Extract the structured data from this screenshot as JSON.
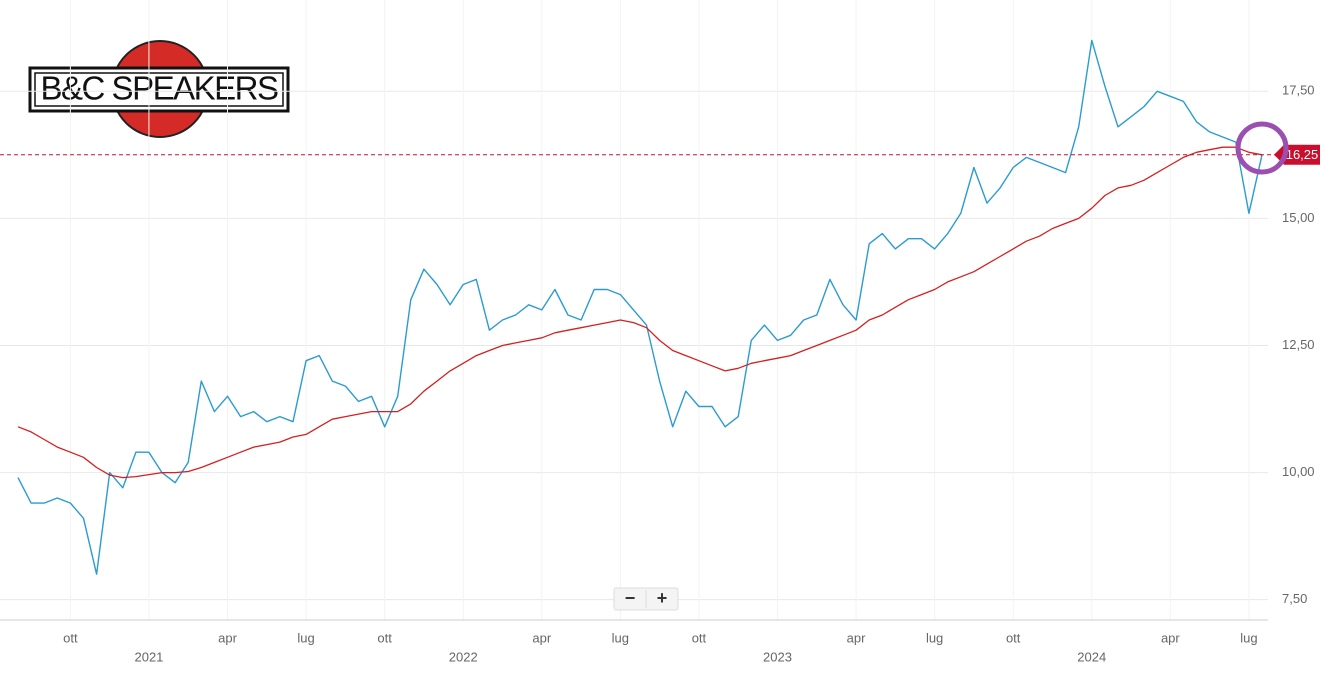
{
  "logo": {
    "text": "B&C SPEAKERS"
  },
  "controls": {
    "zoom_out": "−",
    "zoom_in": "+"
  },
  "chart_data": {
    "type": "line",
    "categories": [
      null,
      null,
      null,
      null,
      "ott",
      null,
      null,
      null,
      null,
      null,
      "2021",
      null,
      null,
      null,
      null,
      null,
      "apr",
      null,
      null,
      null,
      null,
      null,
      "lug",
      null,
      null,
      null,
      null,
      null,
      "ott",
      null,
      null,
      null,
      null,
      null,
      "2022",
      null,
      null,
      null,
      null,
      null,
      "apr",
      null,
      null,
      null,
      null,
      null,
      "lug",
      null,
      null,
      null,
      null,
      null,
      "ott",
      null,
      null,
      null,
      null,
      null,
      "2023",
      null,
      null,
      null,
      null,
      null,
      "apr",
      null,
      null,
      null,
      null,
      null,
      "lug",
      null,
      null,
      null,
      null,
      null,
      "ott",
      null,
      null,
      null,
      null,
      null,
      "2024",
      null,
      null,
      null,
      null,
      null,
      "apr",
      null,
      null,
      null,
      null,
      null,
      "lug",
      null
    ],
    "series": [
      {
        "color": "#2b9bd1",
        "values": [
          9.9,
          9.4,
          9.4,
          9.5,
          9.4,
          9.1,
          8.0,
          10.0,
          9.7,
          10.4,
          10.4,
          10.0,
          9.8,
          10.2,
          11.8,
          11.2,
          11.5,
          11.1,
          11.2,
          11.0,
          11.1,
          11.0,
          12.2,
          12.3,
          11.8,
          11.7,
          11.4,
          11.5,
          10.9,
          11.5,
          13.4,
          14.0,
          13.7,
          13.3,
          13.7,
          13.8,
          12.8,
          13.0,
          13.1,
          13.3,
          13.2,
          13.6,
          13.1,
          13.0,
          13.6,
          13.6,
          13.5,
          13.2,
          12.9,
          11.8,
          10.9,
          11.6,
          11.3,
          11.3,
          10.9,
          11.1,
          12.6,
          12.9,
          12.6,
          12.7,
          13.0,
          13.1,
          13.8,
          13.3,
          13.0,
          14.5,
          14.7,
          14.4,
          14.6,
          14.6,
          14.4,
          14.7,
          15.1,
          16.0,
          15.3,
          15.6,
          16.0,
          16.2,
          16.1,
          16.0,
          15.9,
          16.8,
          18.5,
          17.6,
          16.8,
          17.0,
          17.2,
          17.5,
          17.4,
          17.3,
          16.9,
          16.7,
          16.6,
          16.5,
          15.1,
          16.25
        ]
      },
      {
        "color": "#d42020",
        "values": [
          10.9,
          10.8,
          10.65,
          10.5,
          10.4,
          10.3,
          10.1,
          9.95,
          9.9,
          9.92,
          9.96,
          10.0,
          10.0,
          10.02,
          10.1,
          10.2,
          10.3,
          10.4,
          10.5,
          10.55,
          10.6,
          10.7,
          10.75,
          10.9,
          11.05,
          11.1,
          11.15,
          11.2,
          11.2,
          11.2,
          11.35,
          11.6,
          11.8,
          12.0,
          12.15,
          12.3,
          12.4,
          12.5,
          12.55,
          12.6,
          12.65,
          12.75,
          12.8,
          12.85,
          12.9,
          12.95,
          13.0,
          12.95,
          12.85,
          12.6,
          12.4,
          12.3,
          12.2,
          12.1,
          12.0,
          12.05,
          12.15,
          12.2,
          12.25,
          12.3,
          12.4,
          12.5,
          12.6,
          12.7,
          12.8,
          13.0,
          13.1,
          13.25,
          13.4,
          13.5,
          13.6,
          13.75,
          13.85,
          13.95,
          14.1,
          14.25,
          14.4,
          14.55,
          14.65,
          14.8,
          14.9,
          15.0,
          15.2,
          15.45,
          15.6,
          15.65,
          15.75,
          15.9,
          16.05,
          16.2,
          16.3,
          16.35,
          16.4,
          16.4,
          16.3,
          16.25
        ]
      }
    ],
    "ylim": [
      7.1,
      19
    ],
    "yticks": [
      {
        "value": 7.5,
        "label": "7,50"
      },
      {
        "value": 10,
        "label": "10,00"
      },
      {
        "value": 12.5,
        "label": "12,50"
      },
      {
        "value": 15,
        "label": "15,00"
      },
      {
        "value": 17.5,
        "label": "17,50"
      }
    ],
    "last_price": {
      "value": 16.25,
      "label": "16,25",
      "color": "#c8102e"
    },
    "grid": true
  }
}
